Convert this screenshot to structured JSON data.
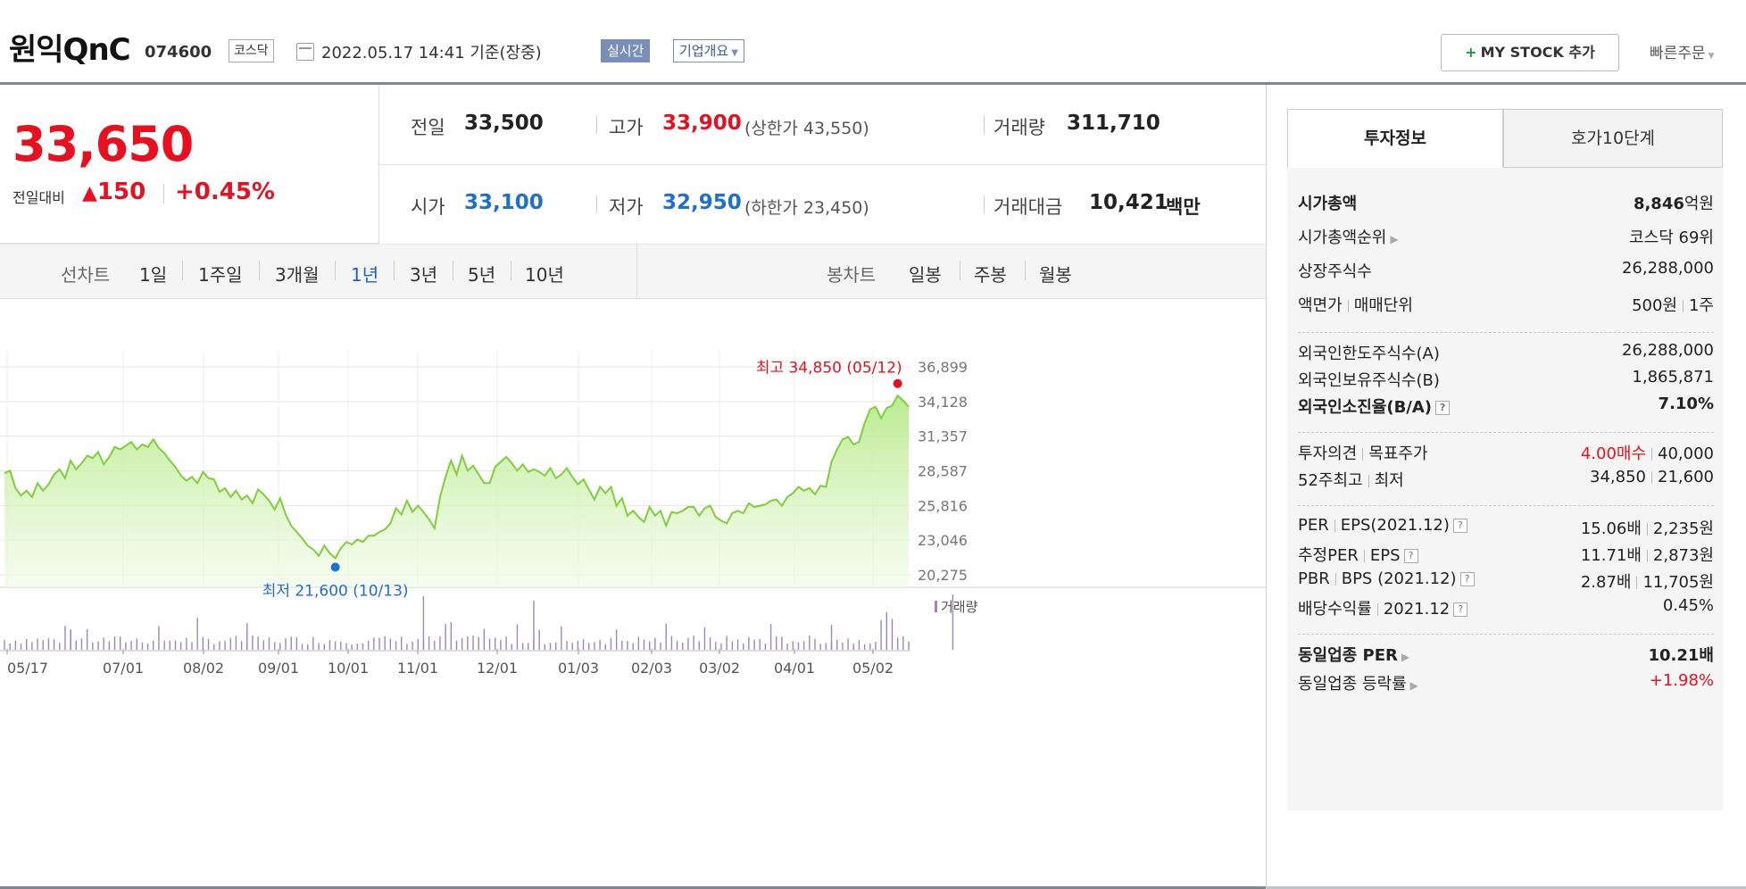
{
  "header": {
    "company_name": "원익QnC",
    "code": "074600",
    "market": "코스닥",
    "datetime": "2022.05.17 14:41  기준(장중)",
    "realtime_label": "실시간",
    "company_info_label": "기업개요",
    "mystock_label": "MY STOCK 추가",
    "quick_order_label": "빠른주문"
  },
  "price": {
    "current": "33,650",
    "change_label": "전일대비",
    "change": "150",
    "change_pct": "+0.45%"
  },
  "quote": {
    "prev_close_label": "전일",
    "prev_close": "33,500",
    "high_label": "고가",
    "high": "33,900",
    "upper_limit": "(상한가 43,550)",
    "volume_label": "거래량",
    "volume": "311,710",
    "open_label": "시가",
    "open": "33,100",
    "low_label": "저가",
    "low": "32,950",
    "lower_limit": "(하한가 23,450)",
    "amount_label": "거래대금",
    "amount": "10,421",
    "amount_unit": "백만"
  },
  "period_bar": {
    "line_chart_label": "선차트",
    "periods": [
      "1일",
      "1주일",
      "3개월",
      "1년",
      "3년",
      "5년",
      "10년"
    ],
    "active_period": "1년",
    "candle_label": "봉차트",
    "candles": [
      "일봉",
      "주봉",
      "월봉"
    ]
  },
  "chart_data": {
    "type": "area",
    "yticks": [
      "36,899",
      "34,128",
      "31,357",
      "28,587",
      "25,816",
      "23,046",
      "20,275"
    ],
    "ylim": [
      20275,
      36899
    ],
    "xticks": [
      "05/17",
      "07/01",
      "08/02",
      "09/01",
      "10/01",
      "11/01",
      "12/01",
      "01/03",
      "02/03",
      "03/02",
      "04/01",
      "05/02"
    ],
    "high_label": "최고 34,850 (05/12)",
    "low_label": "최저 21,600 (10/13)",
    "high_value": 34850,
    "low_value": 21600,
    "volume_label": "거래량",
    "values": [
      28400,
      28600,
      27200,
      26600,
      27000,
      26500,
      27600,
      27000,
      27500,
      28300,
      28700,
      28000,
      29400,
      28700,
      29200,
      29800,
      29600,
      30100,
      29100,
      29700,
      30500,
      30300,
      30600,
      30900,
      30300,
      30700,
      30500,
      31100,
      30400,
      30000,
      29400,
      28900,
      28200,
      27800,
      28100,
      27600,
      28500,
      28000,
      27900,
      26900,
      27200,
      26500,
      27000,
      26300,
      26600,
      26000,
      27100,
      26700,
      26200,
      25500,
      26400,
      25100,
      24200,
      23700,
      23200,
      22600,
      22300,
      21800,
      22600,
      22000,
      21600,
      22400,
      22900,
      22700,
      23100,
      22900,
      23400,
      23400,
      23700,
      23900,
      24400,
      25600,
      25100,
      26200,
      25300,
      25800,
      25300,
      24700,
      24000,
      26500,
      28100,
      29400,
      28300,
      29800,
      28600,
      29000,
      28300,
      27600,
      27600,
      28900,
      29300,
      29700,
      29200,
      28600,
      29100,
      28500,
      28700,
      28500,
      28200,
      28800,
      28000,
      28300,
      28800,
      28100,
      27500,
      27900,
      27100,
      26300,
      27300,
      26800,
      27300,
      25800,
      26400,
      25000,
      25400,
      24900,
      24500,
      25700,
      25000,
      25400,
      24200,
      25300,
      25200,
      25400,
      25700,
      25700,
      25000,
      25600,
      25800,
      24900,
      24600,
      24400,
      25200,
      25400,
      25200,
      26000,
      25700,
      25800,
      25900,
      26200,
      26300,
      25800,
      26500,
      26800,
      27300,
      27000,
      27200,
      26700,
      27400,
      27300,
      29300,
      30300,
      31100,
      31300,
      30700,
      30900,
      32400,
      33500,
      33700,
      32800,
      33600,
      33800,
      34600,
      34200,
      33700
    ]
  },
  "tabs": [
    "투자정보",
    "호가10단계"
  ],
  "invest": {
    "market_cap_label": "시가총액",
    "market_cap": "8,846",
    "market_cap_unit": "억원",
    "rank_label": "시가총액순위",
    "rank": "코스닥 69위",
    "shares_label": "상장주식수",
    "shares": "26,288,000",
    "face_label_1": "액면가",
    "face_label_2": "매매단위",
    "face_1": "500원",
    "face_2": "1주",
    "foreign_limit_label": "외국인한도주식수(A)",
    "foreign_limit": "26,288,000",
    "foreign_hold_label": "외국인보유주식수(B)",
    "foreign_hold": "1,865,871",
    "foreign_ratio_label": "외국인소진율(B/A)",
    "foreign_ratio": "7.10%",
    "opinion_label_1": "투자의견",
    "opinion_label_2": "목표주가",
    "opinion": "4.00매수",
    "target": "40,000",
    "w52_label_1": "52주최고",
    "w52_label_2": "최저",
    "w52_high": "34,850",
    "w52_low": "21,600",
    "per_label_1": "PER",
    "per_label_2": "EPS(2021.12)",
    "per": "15.06배",
    "eps": "2,235원",
    "eper_label_1": "추정PER",
    "eper_label_2": "EPS",
    "eper": "11.71배",
    "eeps": "2,873원",
    "pbr_label_1": "PBR",
    "pbr_label_2": "BPS (2021.12)",
    "pbr": "2.87배",
    "bps": "11,705원",
    "div_label_1": "배당수익률",
    "div_label_2": "2021.12",
    "div": "0.45%",
    "sector_per_label": "동일업종 PER",
    "sector_per": "10.21배",
    "sector_chg_label": "동일업종 등락률",
    "sector_chg": "+1.98%"
  }
}
